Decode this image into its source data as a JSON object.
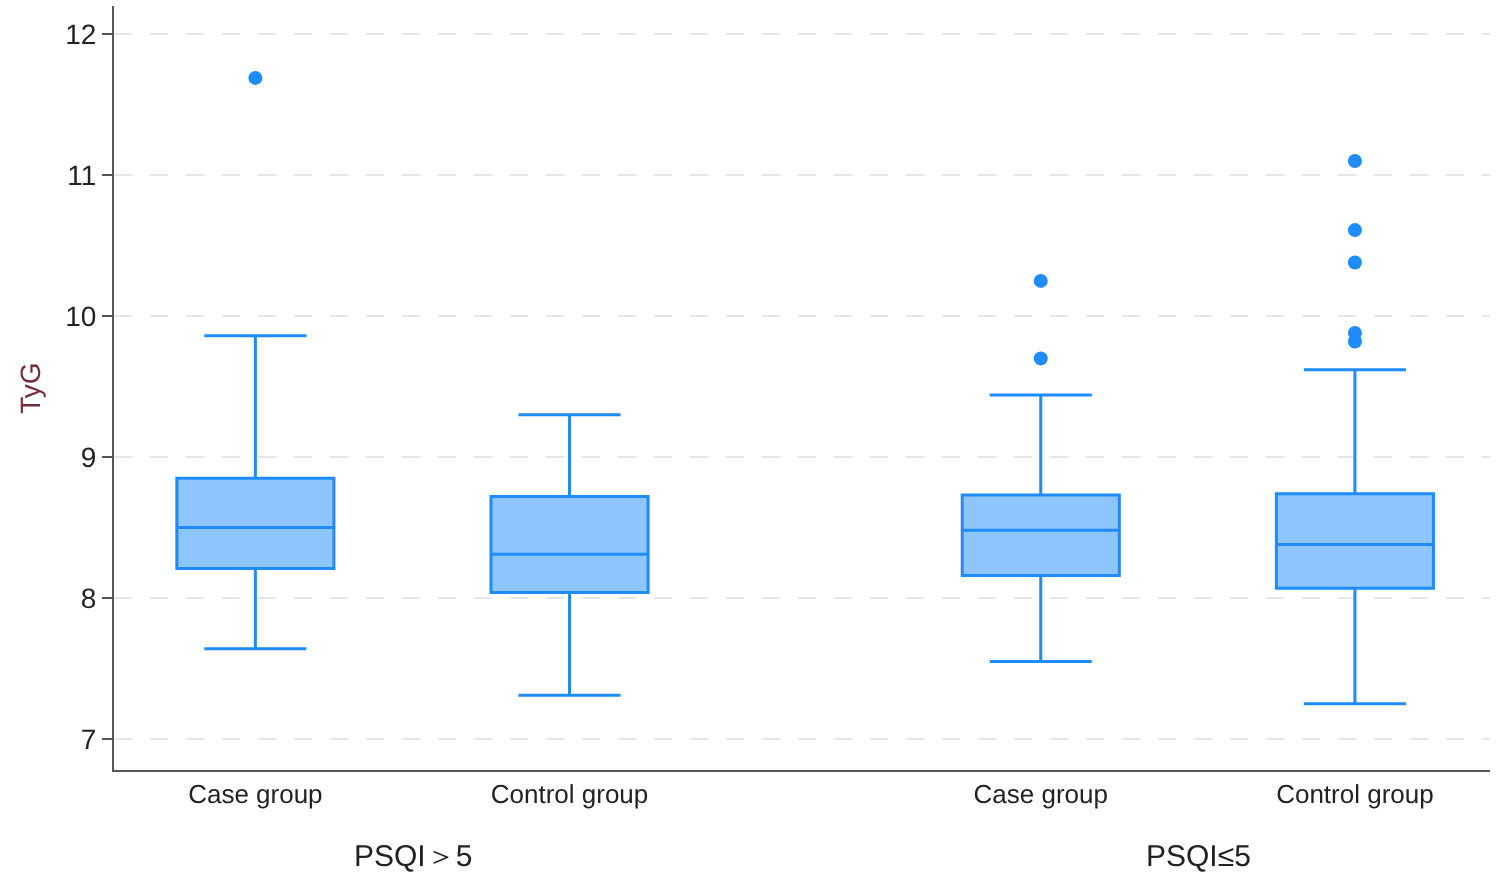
{
  "chart_data": {
    "type": "box",
    "ylabel": "TyG",
    "categories": [
      "Case group",
      "Control group",
      "Case group",
      "Control group"
    ],
    "color": "#1e8cff",
    "boxes": [
      {
        "low": 7.64,
        "q1": 8.21,
        "median": 8.5,
        "q3": 8.85,
        "high": 9.86,
        "outliers": [
          11.69
        ]
      },
      {
        "low": 7.31,
        "q1": 8.04,
        "median": 8.31,
        "q3": 8.72,
        "high": 9.3
      },
      {
        "low": 7.55,
        "q1": 8.16,
        "median": 8.48,
        "q3": 8.73,
        "high": 9.44,
        "outliers": [
          10.25,
          9.7
        ]
      },
      {
        "low": 7.25,
        "q1": 8.07,
        "median": 8.38,
        "q3": 8.74,
        "high": 9.62,
        "outliers": [
          11.1,
          10.61,
          10.38,
          9.88,
          9.82
        ]
      }
    ],
    "ylim": [
      6.78,
      12.2
    ],
    "yticks": [
      7,
      8,
      9,
      10,
      11,
      12
    ],
    "grid": "y",
    "annotations": [
      "PSQI＞5",
      "PSQI≤5"
    ]
  }
}
